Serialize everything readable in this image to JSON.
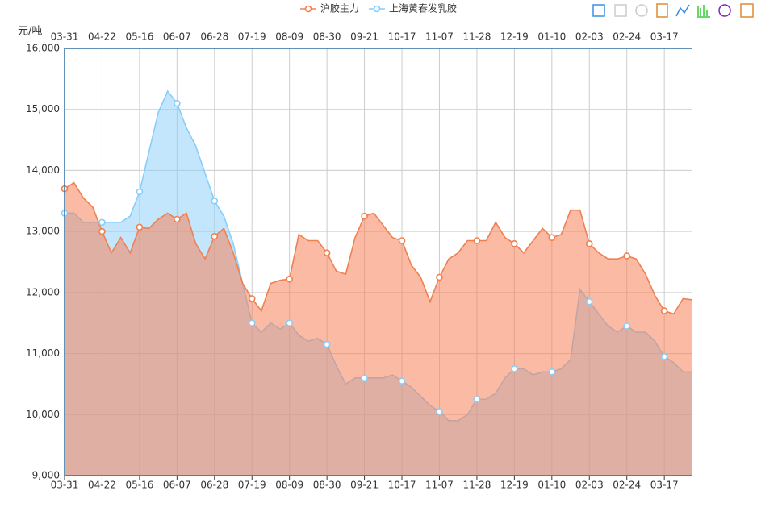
{
  "chart_data": {
    "type": "area",
    "y_axis_label": "元/吨",
    "categories": [
      "03-31",
      null,
      null,
      null,
      "04-22",
      null,
      null,
      null,
      "05-16",
      null,
      null,
      null,
      "06-07",
      null,
      null,
      null,
      "06-28",
      null,
      null,
      null,
      "07-19",
      null,
      null,
      null,
      "08-09",
      null,
      null,
      null,
      "08-30",
      null,
      null,
      null,
      "09-21",
      null,
      null,
      null,
      "10-17",
      null,
      null,
      null,
      "11-07",
      null,
      null,
      null,
      "11-28",
      null,
      null,
      null,
      "12-19",
      null,
      null,
      null,
      "01-10",
      null,
      null,
      null,
      "02-03",
      null,
      null,
      null,
      "02-24",
      null,
      null,
      null,
      "03-17",
      null,
      null,
      null
    ],
    "series": [
      {
        "name": "上海黄春发乳胶",
        "color": "#87cefa",
        "values": [
          13300,
          13300,
          13150,
          13150,
          13150,
          13150,
          13150,
          13250,
          13650,
          14300,
          14950,
          15300,
          15100,
          14700,
          14400,
          13950,
          13500,
          13250,
          12800,
          12150,
          11500,
          11350,
          11500,
          11400,
          11500,
          11300,
          11200,
          11250,
          11150,
          10800,
          10500,
          10600,
          10600,
          10600,
          10600,
          10650,
          10550,
          10450,
          10300,
          10150,
          10050,
          9900,
          9900,
          10000,
          10250,
          10250,
          10350,
          10600,
          10750,
          10750,
          10650,
          10700,
          10700,
          10750,
          10900,
          12050,
          11850,
          11650,
          11450,
          11350,
          11450,
          11350,
          11350,
          11200,
          10950,
          10850,
          10700,
          10700
        ]
      },
      {
        "name": "沪胶主力",
        "color": "#f08050",
        "values": [
          13700,
          13800,
          13550,
          13400,
          13000,
          12650,
          12900,
          12650,
          13070,
          13050,
          13200,
          13300,
          13200,
          13300,
          12800,
          12550,
          12920,
          13050,
          12650,
          12150,
          11900,
          11700,
          12150,
          12200,
          12220,
          12950,
          12850,
          12850,
          12650,
          12350,
          12300,
          12900,
          13250,
          13300,
          13100,
          12900,
          12850,
          12450,
          12250,
          11850,
          12250,
          12550,
          12650,
          12850,
          12850,
          12850,
          13150,
          12900,
          12800,
          12650,
          12850,
          13050,
          12900,
          12950,
          13350,
          13350,
          12800,
          12650,
          12550,
          12550,
          12600,
          12550,
          12300,
          11950,
          11700,
          11650,
          11900,
          11880
        ]
      }
    ],
    "ylim": [
      9000,
      16000
    ],
    "yticks": [
      {
        "value": 9000,
        "label": "9,000"
      },
      {
        "value": 10000,
        "label": "10,000"
      },
      {
        "value": 11000,
        "label": "11,000"
      },
      {
        "value": 12000,
        "label": "12,000"
      },
      {
        "value": 13000,
        "label": "13,000"
      },
      {
        "value": 14000,
        "label": "14,000"
      },
      {
        "value": 15000,
        "label": "15,000"
      },
      {
        "value": 16000,
        "label": "16,000"
      }
    ],
    "grid": true
  }
}
